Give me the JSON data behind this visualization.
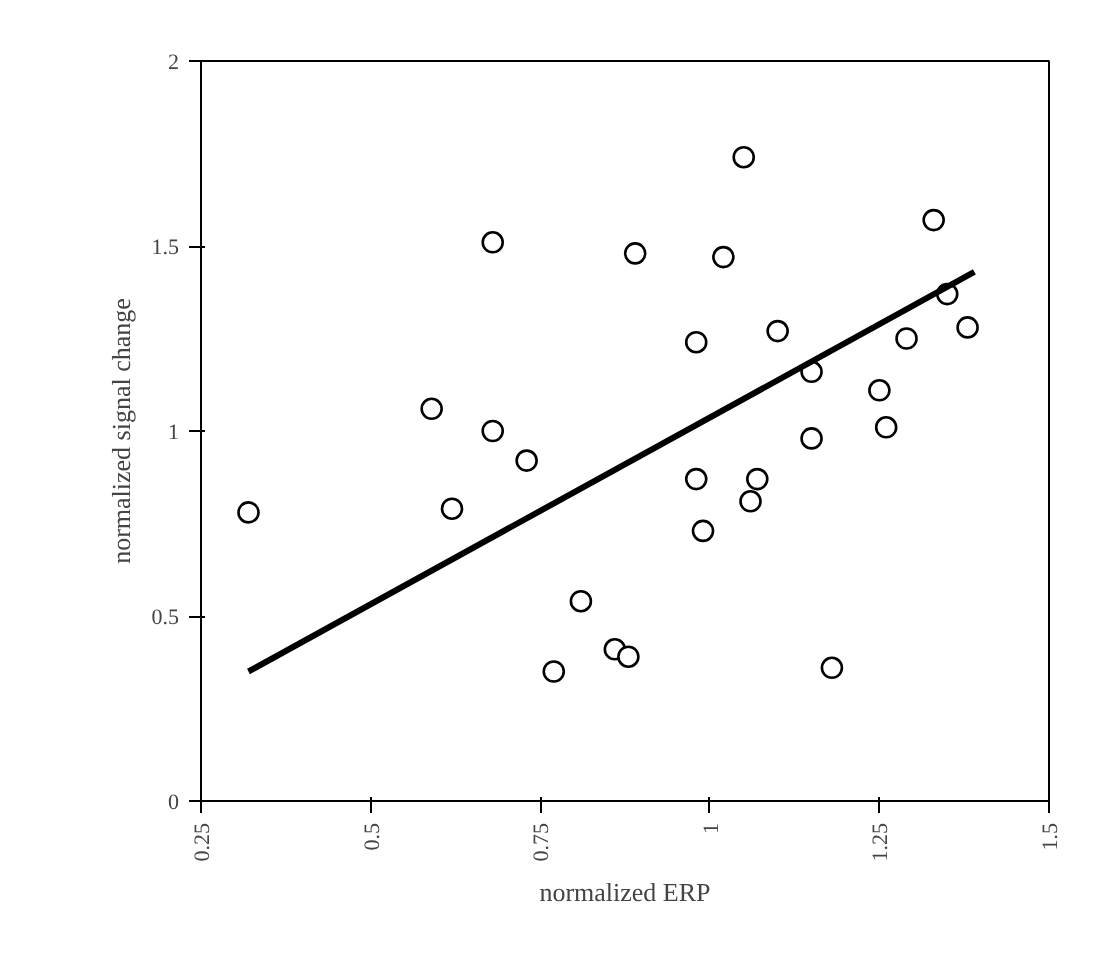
{
  "chart_data": {
    "type": "scatter",
    "xlabel": "normalized ERP",
    "ylabel": "normalized signal change",
    "xlim": [
      0.25,
      1.5
    ],
    "xticks": [
      0.25,
      0.5,
      0.75,
      1,
      1.25,
      1.5
    ],
    "ylim": [
      0,
      2
    ],
    "yticks": [
      0,
      0.5,
      1,
      1.5,
      2
    ],
    "grid": false,
    "series": [
      {
        "color": "#000000",
        "marker": "circle",
        "x": [
          0.32,
          0.59,
          0.62,
          0.68,
          0.68,
          0.73,
          0.77,
          0.81,
          0.86,
          0.88,
          0.89,
          0.98,
          0.98,
          0.99,
          1.02,
          1.05,
          1.06,
          1.07,
          1.1,
          1.15,
          1.15,
          1.18,
          1.25,
          1.26,
          1.29,
          1.33,
          1.35,
          1.38
        ],
        "values": [
          0.78,
          1.06,
          0.79,
          1.0,
          1.51,
          0.92,
          0.35,
          0.54,
          0.41,
          0.39,
          1.48,
          1.24,
          0.87,
          0.73,
          1.47,
          1.74,
          0.81,
          0.87,
          1.27,
          1.16,
          0.98,
          0.36,
          1.11,
          1.01,
          1.25,
          1.57,
          1.37,
          1.28
        ]
      },
      {
        "type": "line",
        "marker": "none",
        "color": "#000000",
        "x": [
          0.32,
          1.39
        ],
        "values": [
          0.35,
          1.43
        ]
      }
    ]
  }
}
